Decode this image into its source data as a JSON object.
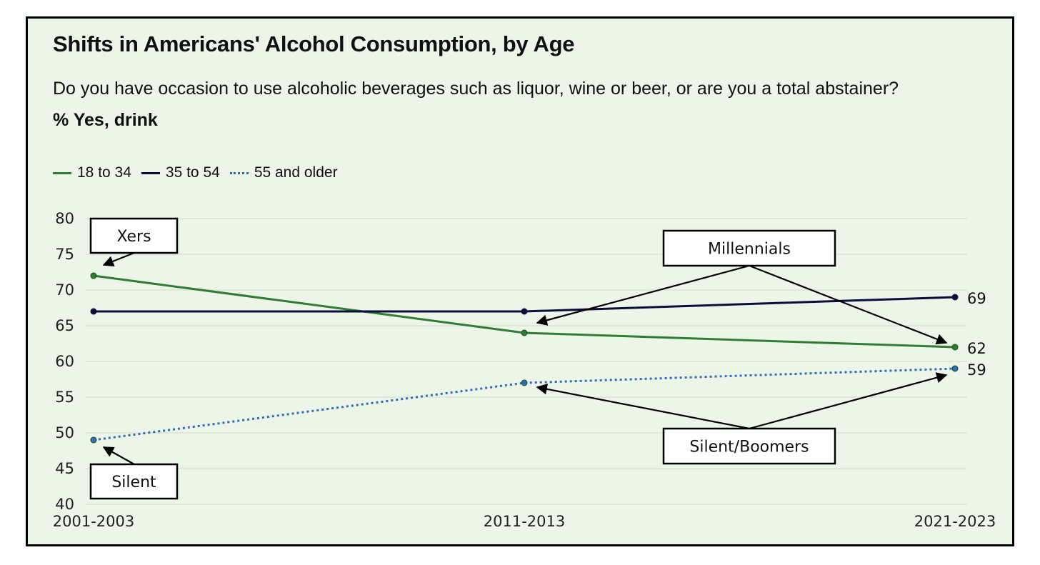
{
  "header": {
    "title": "Shifts in Americans' Alcohol Consumption, by Age",
    "question": "Do you have occasion to use alcoholic beverages such as liquor, wine or beer, or are you a total abstainer?",
    "measure": "% Yes, drink"
  },
  "colors": {
    "background": "#edf4e8",
    "series_18_34": "#2e7d32",
    "series_35_54": "#0d0d3b",
    "series_55_plus": "#2f6db5"
  },
  "legend": [
    {
      "label": "18 to 34",
      "color": "#2e7d32",
      "style": "solid"
    },
    {
      "label": "35 to 54",
      "color": "#0d0d3b",
      "style": "solid"
    },
    {
      "label": "55 and older",
      "color": "#2f6db5",
      "style": "dotted"
    }
  ],
  "chart_data": {
    "type": "line",
    "title": "Shifts in Americans' Alcohol Consumption, by Age",
    "subtitle": "Do you have occasion to use alcoholic beverages such as liquor, wine or beer, or are you a total abstainer?",
    "ylabel": "% Yes, drink",
    "categories": [
      "2001-2003",
      "2011-2013",
      "2021-2023"
    ],
    "ylim": [
      40,
      80
    ],
    "yticks": [
      40,
      45,
      50,
      55,
      60,
      65,
      70,
      75,
      80
    ],
    "grid": true,
    "legend_position": "top-left",
    "series": [
      {
        "name": "18 to 34",
        "values": [
          72,
          64,
          62
        ],
        "color": "#2e7d32",
        "style": "solid"
      },
      {
        "name": "35 to 54",
        "values": [
          67,
          67,
          69
        ],
        "color": "#0d0d3b",
        "style": "solid"
      },
      {
        "name": "55 and older",
        "values": [
          49,
          57,
          59
        ],
        "color": "#2f6db5",
        "style": "dotted"
      }
    ],
    "end_labels": [
      {
        "series": "35 to 54",
        "text": "69"
      },
      {
        "series": "18 to 34",
        "text": "62"
      },
      {
        "series": "55 and older",
        "text": "59"
      }
    ],
    "annotations": [
      {
        "text": "Xers",
        "targets": [
          {
            "category": "2001-2003",
            "value": 72
          }
        ]
      },
      {
        "text": "Millennials",
        "targets": [
          {
            "category": "2011-2013",
            "value": 64
          },
          {
            "category": "2021-2023",
            "value": 62
          }
        ]
      },
      {
        "text": "Silent/Boomers",
        "targets": [
          {
            "category": "2011-2013",
            "value": 57
          },
          {
            "category": "2021-2023",
            "value": 59
          }
        ]
      },
      {
        "text": "Silent",
        "targets": [
          {
            "category": "2001-2003",
            "value": 49
          }
        ]
      }
    ]
  }
}
